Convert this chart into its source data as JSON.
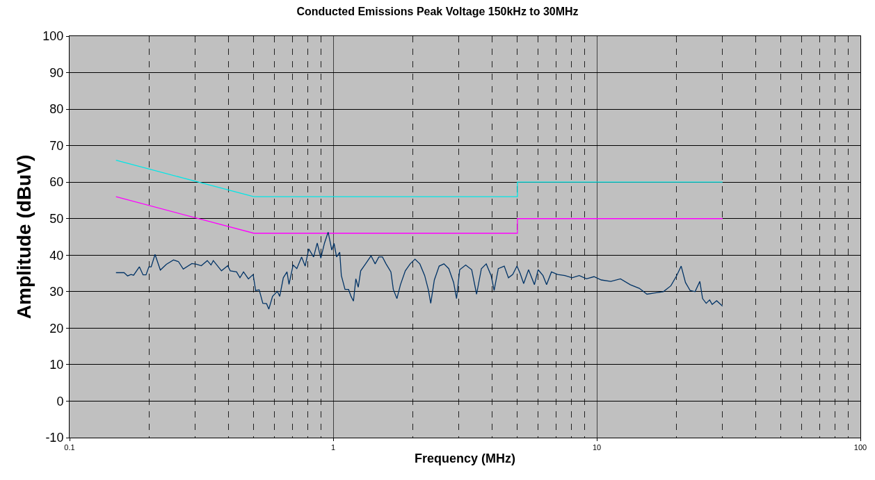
{
  "chart_data": {
    "type": "line",
    "title": "Conducted Emissions Peak Voltage 150kHz to 30MHz",
    "xlabel": "Frequency (MHz)",
    "ylabel": "Amplitude (dBuV)",
    "log": "x",
    "grid": true,
    "marker": "none",
    "line_style": "solid",
    "xlim": [
      0.1,
      100
    ],
    "xticks": [
      0.1,
      1,
      10,
      100
    ],
    "ylim": [
      -10,
      100
    ],
    "yticks": [
      -10,
      0,
      10,
      20,
      30,
      40,
      50,
      60,
      70,
      80,
      90,
      100
    ],
    "series": [
      {
        "color": "#00e6e6",
        "x": [
          0.15,
          0.5,
          5,
          5,
          30
        ],
        "values": [
          66,
          56,
          56,
          60,
          60
        ]
      },
      {
        "color": "#ff00ff",
        "x": [
          0.15,
          0.5,
          5,
          5,
          30
        ],
        "values": [
          56,
          46,
          46,
          50,
          50
        ]
      },
      {
        "color": "#003366",
        "x": [
          0.15,
          0.161,
          0.166,
          0.171,
          0.175,
          0.184,
          0.19,
          0.195,
          0.2,
          0.204,
          0.211,
          0.221,
          0.233,
          0.248,
          0.259,
          0.27,
          0.291,
          0.303,
          0.316,
          0.333,
          0.344,
          0.351,
          0.377,
          0.398,
          0.407,
          0.43,
          0.443,
          0.457,
          0.477,
          0.497,
          0.508,
          0.524,
          0.541,
          0.559,
          0.57,
          0.589,
          0.614,
          0.627,
          0.647,
          0.668,
          0.68,
          0.705,
          0.728,
          0.759,
          0.783,
          0.808,
          0.843,
          0.87,
          0.898,
          0.927,
          0.957,
          0.988,
          1.008,
          1.03,
          1.059,
          1.074,
          1.109,
          1.144,
          1.169,
          1.194,
          1.219,
          1.245,
          1.272,
          1.327,
          1.392,
          1.443,
          1.49,
          1.538,
          1.587,
          1.656,
          1.691,
          1.745,
          1.8,
          1.878,
          1.959,
          2.044,
          2.132,
          2.224,
          2.295,
          2.345,
          2.42,
          2.524,
          2.631,
          2.745,
          2.864,
          2.938,
          3.02,
          3.182,
          3.354,
          3.5,
          3.65,
          3.808,
          3.973,
          4.079,
          4.231,
          4.456,
          4.623,
          4.8,
          4.98,
          5.12,
          5.28,
          5.51,
          5.8,
          5.99,
          6.25,
          6.45,
          6.73,
          7.1,
          7.56,
          8.06,
          8.58,
          9.14,
          9.76,
          10.4,
          11.3,
          12.3,
          13.4,
          14.5,
          15.5,
          16.5,
          17.9,
          19.1,
          20.1,
          20.9,
          21.7,
          22.6,
          23.6,
          24.6,
          25.2,
          26.0,
          26.8,
          27.4,
          28.5,
          30.0
        ],
        "values": [
          35.2,
          35.2,
          34.3,
          34.7,
          34.5,
          36.8,
          34.6,
          34.6,
          36.8,
          36.8,
          40.2,
          35.9,
          37.5,
          38.7,
          38.2,
          36.2,
          37.7,
          37.5,
          37.1,
          38.5,
          37.3,
          38.5,
          35.7,
          37.1,
          35.7,
          35.4,
          33.8,
          35.4,
          33.5,
          34.7,
          30.3,
          30.5,
          26.8,
          26.7,
          25.2,
          28.7,
          30.1,
          28.7,
          33.8,
          35.4,
          32.0,
          37.3,
          36.3,
          39.5,
          37.0,
          41.7,
          39.5,
          43.3,
          39.2,
          43.3,
          46.3,
          41.4,
          43.2,
          39.5,
          40.8,
          34.4,
          30.6,
          30.6,
          28.7,
          27.4,
          33.5,
          31.2,
          35.7,
          37.6,
          39.8,
          37.6,
          39.5,
          39.5,
          37.6,
          35.4,
          30.6,
          28.1,
          31.9,
          35.7,
          37.6,
          38.9,
          37.6,
          34.4,
          30.6,
          26.8,
          33.2,
          37.0,
          37.6,
          36.3,
          32.5,
          28.1,
          36.0,
          37.3,
          36.0,
          29.3,
          36.3,
          37.6,
          34.4,
          30.3,
          36.3,
          37.0,
          33.8,
          34.7,
          37.0,
          35.0,
          32.2,
          36.0,
          31.9,
          36.0,
          34.4,
          31.9,
          35.4,
          34.7,
          34.4,
          33.8,
          34.4,
          33.5,
          34.1,
          33.2,
          32.8,
          33.5,
          31.9,
          30.9,
          29.3,
          29.6,
          30.0,
          31.6,
          34.4,
          37.0,
          32.5,
          30.3,
          30.0,
          32.8,
          28.1,
          26.8,
          27.7,
          26.5,
          27.5,
          26.0
        ]
      }
    ]
  }
}
